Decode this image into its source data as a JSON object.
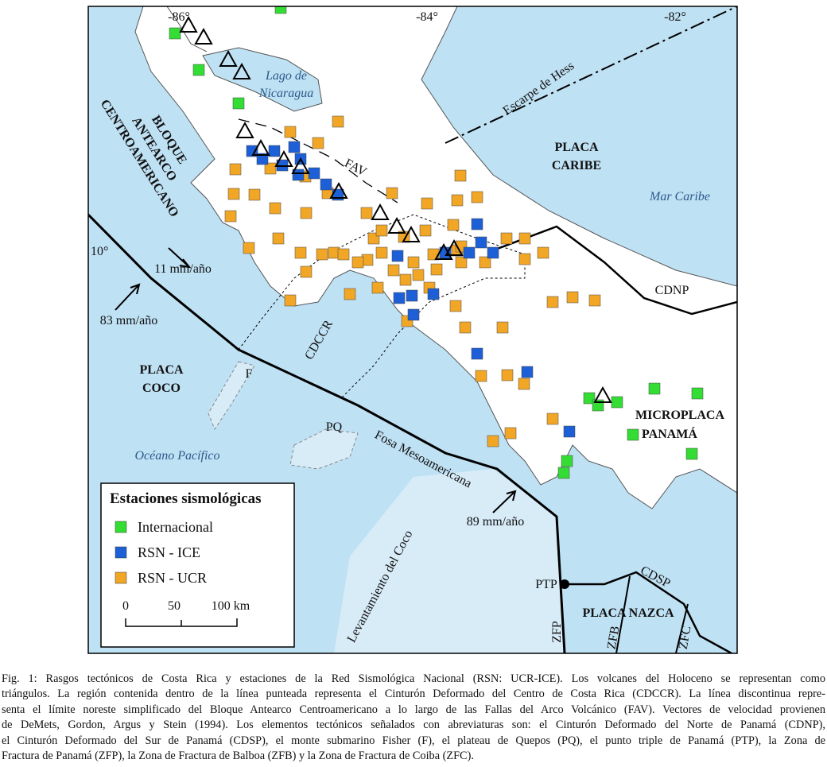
{
  "map": {
    "longitude_labels": [
      "-86°",
      "-84°",
      "-82°"
    ],
    "latitude_labels": [
      "10°"
    ],
    "lago": [
      "Lago de",
      "Nicaragua"
    ],
    "escarpe": "Escarpe de Hess",
    "placa_caribe": [
      "PLACA",
      "CARIBE"
    ],
    "mar_caribe": "Mar Caribe",
    "bloque": [
      "BLOQUE",
      "ANTEARCO",
      "CENTROAMERICANO"
    ],
    "fav": "FAV",
    "vel_11": "11 mm/año",
    "vel_83": "83 mm/año",
    "vel_89": "89 mm/año",
    "cdnp": "CDNP",
    "cdccr": "CDCCR",
    "placa_coco": [
      "PLACA",
      "COCO"
    ],
    "f": "F",
    "pq": "PQ",
    "oceano": "Océano Pacífico",
    "fosa": "Fosa Mesoamericana",
    "microplaca": [
      "MICROPLACA",
      "PANAMÁ"
    ],
    "levantamiento": "Levantamiento del Coco",
    "ptp": "PTP",
    "cdsp": "CDSP",
    "placa_nazca": "PLACA NAZCA",
    "zfp": "ZFP",
    "zfb": "ZFB",
    "zfc": "ZFC"
  },
  "legend": {
    "title": "Estaciones sismológicas",
    "items": [
      "Internacional",
      "RSN - ICE",
      "RSN - UCR"
    ],
    "scale": [
      "0",
      "50",
      "100 km"
    ]
  },
  "caption": {
    "lines": [
      "Fig. 1: Rasgos tectónicos de Costa Rica y estaciones de la Red Sismológica Nacional (RSN: UCR-ICE). Los volcanes del Holoceno se representan como",
      "triángulos. La región contenida dentro de la línea punteada representa el Cinturón Deformado del Centro de Costa Rica (CDCCR). La línea discontinua repre-",
      "senta el límite noreste simplificado del Bloque Antearco Centroamericano a lo largo de las Fallas del Arco Volcánico (FAV). Vectores de velocidad provienen",
      "de DeMets, Gordon, Argus y Stein (1994). Los elementos tectónicos señalados con abreviaturas son: el Cinturón Deformado del Norte de Panamá (CDNP),",
      "el Cinturón Deformado del Sur de Panamá (CDSP), el monte submarino Fisher (F), el plateau de Quepos (PQ), el punto triple de Panamá (PTP), la Zona de",
      "Fractura de Panamá (ZFP), la Zona de Fractura de Balboa (ZFB) y la Zona de Fractura de Coiba (ZFC)."
    ]
  }
}
